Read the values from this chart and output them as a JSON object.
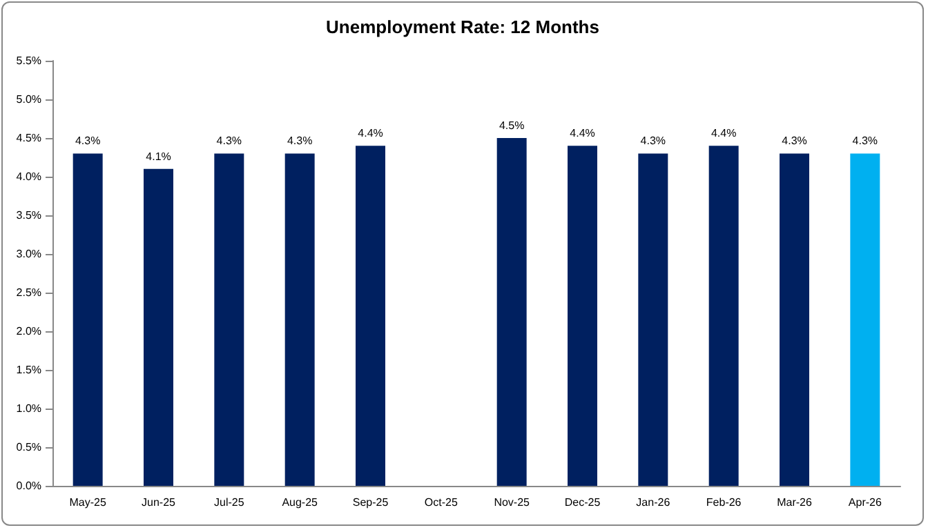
{
  "chart_data": {
    "type": "bar",
    "title": "Unemployment Rate: 12 Months",
    "categories": [
      "May-25",
      "Jun-25",
      "Jul-25",
      "Aug-25",
      "Sep-25",
      "Oct-25",
      "Nov-25",
      "Dec-25",
      "Jan-26",
      "Feb-26",
      "Mar-26",
      "Apr-26"
    ],
    "values": [
      4.3,
      4.1,
      4.3,
      4.3,
      4.4,
      null,
      4.5,
      4.4,
      4.3,
      4.4,
      4.3,
      4.3
    ],
    "colors": [
      "#002060",
      "#002060",
      "#002060",
      "#002060",
      "#002060",
      "#002060",
      "#002060",
      "#002060",
      "#002060",
      "#002060",
      "#002060",
      "#00b0f0"
    ],
    "value_labels": [
      "4.3%",
      "4.1%",
      "4.3%",
      "4.3%",
      "4.4%",
      null,
      "4.5%",
      "4.4%",
      "4.3%",
      "4.4%",
      "4.3%",
      "4.3%"
    ],
    "ylim": [
      0,
      5.5
    ],
    "yticks": [
      {
        "value": 0,
        "label": "0.0%"
      },
      {
        "value": 0.5,
        "label": "0.5%"
      },
      {
        "value": 1,
        "label": "1.0%"
      },
      {
        "value": 1.5,
        "label": "1.5%"
      },
      {
        "value": 2,
        "label": "2.0%"
      },
      {
        "value": 2.5,
        "label": "2.5%"
      },
      {
        "value": 3,
        "label": "3.0%"
      },
      {
        "value": 3.5,
        "label": "3.5%"
      },
      {
        "value": 4,
        "label": "4.0%"
      },
      {
        "value": 4.5,
        "label": "4.5%"
      },
      {
        "value": 5,
        "label": "5.0%"
      },
      {
        "value": 5.5,
        "label": "5.5%"
      }
    ],
    "grid": false
  }
}
